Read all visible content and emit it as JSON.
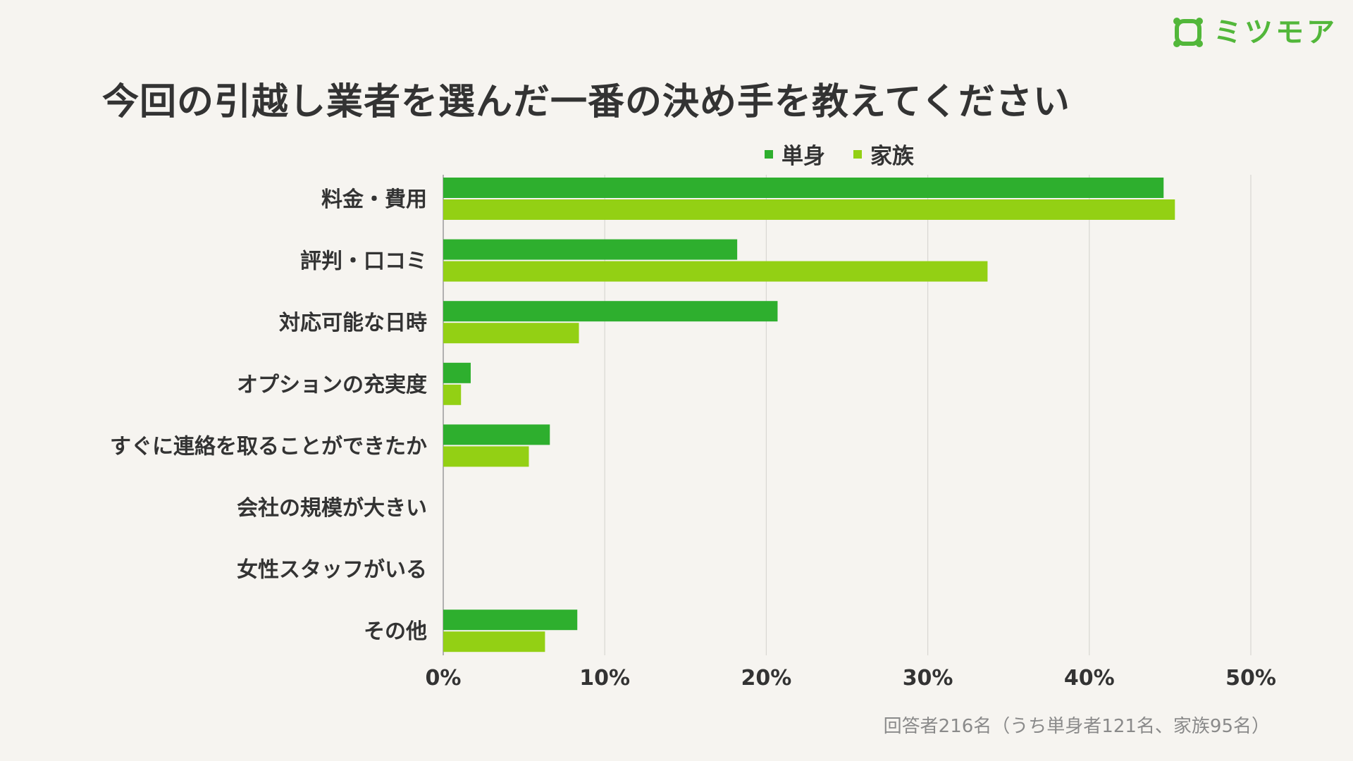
{
  "brand": {
    "name": "ミツモア",
    "icon": "mitsumore-logo-icon",
    "color": "#52b73a"
  },
  "chart_data": {
    "type": "bar",
    "orientation": "horizontal",
    "title": "今回の引越し業者を選んだ一番の決め手を教えてください",
    "categories": [
      "料金・費用",
      "評判・口コミ",
      "対応可能な日時",
      "オプションの充実度",
      "すぐに連絡を取ることができたか",
      "会社の規模が大きい",
      "女性スタッフがいる",
      "その他"
    ],
    "series": [
      {
        "name": "単身",
        "color": "#2eaf2e",
        "values": [
          44.6,
          18.2,
          20.7,
          1.7,
          6.6,
          0,
          0,
          8.3
        ]
      },
      {
        "name": "家族",
        "color": "#93d014",
        "values": [
          45.3,
          33.7,
          8.4,
          1.1,
          5.3,
          0,
          0,
          6.3
        ]
      }
    ],
    "xlim": [
      0,
      50
    ],
    "x_ticks": [
      "0%",
      "10%",
      "20%",
      "30%",
      "40%",
      "50%"
    ],
    "grid": true,
    "legend_position": "top"
  },
  "note": "回答者216名（うち単身者121名、家族95名）"
}
